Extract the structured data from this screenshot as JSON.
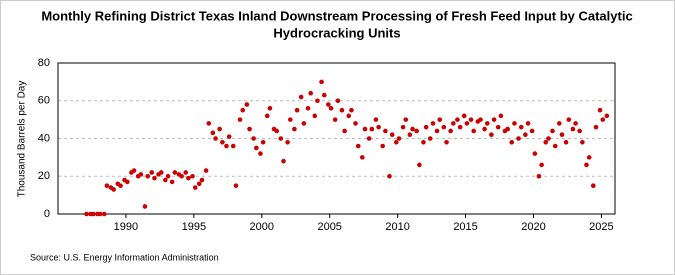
{
  "chart_data": {
    "type": "scatter",
    "title": "Monthly Refining District Texas Inland Downstream Processing of Fresh Feed Input by Catalytic",
    "subtitle": "Hydrocracking Units",
    "y_label": "Thousand Barrels per Day",
    "source": "Source: U.S. Energy Information Administration",
    "xlim": [
      1985,
      2026
    ],
    "xticks": [
      1990,
      1995,
      2000,
      2005,
      2010,
      2015,
      2020,
      2025
    ],
    "ylim": [
      0,
      80
    ],
    "yticks": [
      0,
      20,
      40,
      60,
      80
    ],
    "grid": true,
    "series": [
      {
        "name": "Texas Inland Downstream Processing",
        "color": "#cc0000",
        "x": [
          1987.1,
          1987.4,
          1987.6,
          1987.9,
          1988.1,
          1988.4,
          1988.6,
          1988.9,
          1989.1,
          1989.4,
          1989.6,
          1989.9,
          1990.1,
          1990.4,
          1990.6,
          1990.9,
          1991.1,
          1991.4,
          1991.6,
          1991.9,
          1992.1,
          1992.4,
          1992.6,
          1992.9,
          1993.1,
          1993.4,
          1993.6,
          1993.9,
          1994.1,
          1994.4,
          1994.6,
          1994.9,
          1995.1,
          1995.4,
          1995.6,
          1995.9,
          1996.1,
          1996.4,
          1996.6,
          1996.9,
          1997.1,
          1997.4,
          1997.6,
          1997.9,
          1998.1,
          1998.4,
          1998.6,
          1998.9,
          1999.1,
          1999.4,
          1999.6,
          1999.9,
          2000.1,
          2000.4,
          2000.6,
          2000.9,
          2001.1,
          2001.4,
          2001.6,
          2001.9,
          2002.1,
          2002.4,
          2002.6,
          2002.9,
          2003.1,
          2003.4,
          2003.6,
          2003.9,
          2004.1,
          2004.4,
          2004.6,
          2004.9,
          2005.1,
          2005.4,
          2005.6,
          2005.9,
          2006.1,
          2006.4,
          2006.6,
          2006.9,
          2007.1,
          2007.4,
          2007.6,
          2007.9,
          2008.1,
          2008.4,
          2008.6,
          2008.9,
          2009.1,
          2009.4,
          2009.6,
          2009.9,
          2010.1,
          2010.4,
          2010.6,
          2010.9,
          2011.1,
          2011.4,
          2011.6,
          2011.9,
          2012.1,
          2012.4,
          2012.6,
          2012.9,
          2013.1,
          2013.4,
          2013.6,
          2013.9,
          2014.1,
          2014.4,
          2014.6,
          2014.9,
          2015.1,
          2015.4,
          2015.6,
          2015.9,
          2016.1,
          2016.4,
          2016.6,
          2016.9,
          2017.1,
          2017.4,
          2017.6,
          2017.9,
          2018.1,
          2018.4,
          2018.6,
          2018.9,
          2019.1,
          2019.4,
          2019.6,
          2019.9,
          2020.1,
          2020.4,
          2020.6,
          2020.9,
          2021.1,
          2021.4,
          2021.6,
          2021.9,
          2022.1,
          2022.4,
          2022.6,
          2022.9,
          2023.1,
          2023.4,
          2023.6,
          2023.9,
          2024.1,
          2024.4,
          2024.6,
          2024.9,
          2025.1,
          2025.4
        ],
        "values": [
          0,
          0,
          0,
          0,
          0,
          0,
          15,
          14,
          13,
          16,
          15,
          18,
          17,
          22,
          23,
          20,
          21,
          4,
          20,
          22,
          19,
          21,
          22,
          18,
          20,
          17,
          22,
          21,
          20,
          22,
          19,
          20,
          14,
          16,
          18,
          23,
          48,
          43,
          40,
          45,
          38,
          36,
          41,
          36,
          15,
          50,
          55,
          58,
          45,
          40,
          35,
          32,
          38,
          52,
          56,
          45,
          44,
          40,
          28,
          38,
          50,
          45,
          55,
          62,
          48,
          56,
          64,
          52,
          60,
          70,
          63,
          58,
          56,
          50,
          60,
          55,
          44,
          52,
          55,
          48,
          36,
          30,
          45,
          40,
          45,
          50,
          46,
          36,
          44,
          20,
          42,
          38,
          40,
          46,
          50,
          42,
          45,
          44,
          26,
          38,
          46,
          40,
          48,
          44,
          50,
          46,
          38,
          44,
          48,
          50,
          46,
          52,
          48,
          50,
          44,
          49,
          50,
          45,
          48,
          42,
          50,
          46,
          52,
          44,
          45,
          38,
          48,
          40,
          46,
          42,
          48,
          44,
          32,
          20,
          26,
          38,
          40,
          44,
          36,
          48,
          42,
          38,
          50,
          45,
          48,
          44,
          38,
          26,
          30,
          15,
          46,
          55,
          50,
          52
        ]
      }
    ]
  }
}
